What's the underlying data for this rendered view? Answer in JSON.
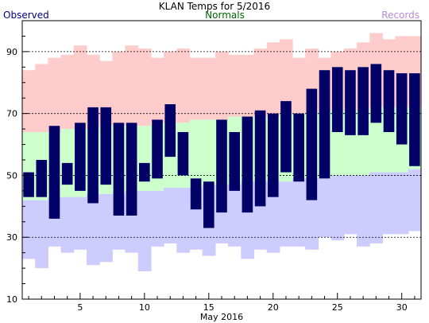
{
  "chart_data": {
    "type": "bar",
    "title": "KLAN Temps for 5/2016",
    "xlabel": "May 2016",
    "ylabel": "",
    "legend": {
      "observed": "Observed",
      "normals": "Normals",
      "records": "Records",
      "placement": "top"
    },
    "colors": {
      "observed": "#000066",
      "normals": "#ccffcc",
      "records": "#ffcccc",
      "record_low_band": "#ccccff",
      "observed_text": "#000080",
      "normals_text": "#006400",
      "records_text": "#b689d6"
    },
    "xlim": [
      0.5,
      31.5
    ],
    "ylim": [
      10,
      100
    ],
    "x_ticks": [
      5,
      10,
      15,
      20,
      25,
      30
    ],
    "y_ticks": [
      10,
      30,
      50,
      70,
      90
    ],
    "gridlines_y": [
      30,
      50,
      70,
      90
    ],
    "grid": true,
    "days": [
      1,
      2,
      3,
      4,
      5,
      6,
      7,
      8,
      9,
      10,
      11,
      12,
      13,
      14,
      15,
      16,
      17,
      18,
      19,
      20,
      21,
      22,
      23,
      24,
      25,
      26,
      27,
      28,
      29,
      30,
      31
    ],
    "series": [
      {
        "name": "Records",
        "key": "record_high",
        "values": [
          84,
          86,
          88,
          89,
          92,
          89,
          87,
          90,
          92,
          91,
          88,
          90,
          91,
          88,
          88,
          90,
          89,
          89,
          91,
          93,
          94,
          88,
          91,
          88,
          90,
          91,
          93,
          96,
          94,
          95,
          95
        ]
      },
      {
        "name": "Normals",
        "key": "normal_high",
        "values": [
          64,
          64,
          64,
          65,
          65,
          65,
          66,
          66,
          66,
          66,
          67,
          67,
          67,
          68,
          68,
          68,
          69,
          69,
          69,
          69,
          70,
          70,
          70,
          71,
          71,
          71,
          71,
          72,
          72,
          72,
          72
        ]
      },
      {
        "name": "Normals",
        "key": "normal_low",
        "values": [
          42,
          42,
          43,
          43,
          43,
          44,
          44,
          44,
          45,
          45,
          45,
          46,
          46,
          46,
          47,
          47,
          47,
          48,
          48,
          48,
          48,
          49,
          49,
          49,
          50,
          50,
          50,
          51,
          51,
          51,
          52
        ]
      },
      {
        "name": "Records",
        "key": "record_low",
        "values": [
          23,
          20,
          27,
          25,
          26,
          21,
          22,
          26,
          25,
          19,
          27,
          28,
          25,
          26,
          24,
          28,
          27,
          23,
          26,
          25,
          27,
          27,
          26,
          30,
          29,
          31,
          27,
          28,
          31,
          31,
          32
        ]
      },
      {
        "name": "Observed",
        "key": "observed_high",
        "values": [
          51,
          55,
          66,
          54,
          67,
          72,
          72,
          67,
          67,
          54,
          68,
          73,
          64,
          49,
          48,
          68,
          64,
          69,
          71,
          70,
          74,
          70,
          78,
          84,
          85,
          84,
          85,
          86,
          84,
          83,
          83
        ]
      },
      {
        "name": "Observed",
        "key": "observed_low",
        "values": [
          43,
          43,
          36,
          47,
          45,
          41,
          47,
          37,
          37,
          48,
          49,
          56,
          50,
          39,
          33,
          38,
          45,
          38,
          40,
          43,
          51,
          48,
          42,
          49,
          64,
          63,
          63,
          67,
          64,
          60,
          53
        ]
      }
    ]
  }
}
